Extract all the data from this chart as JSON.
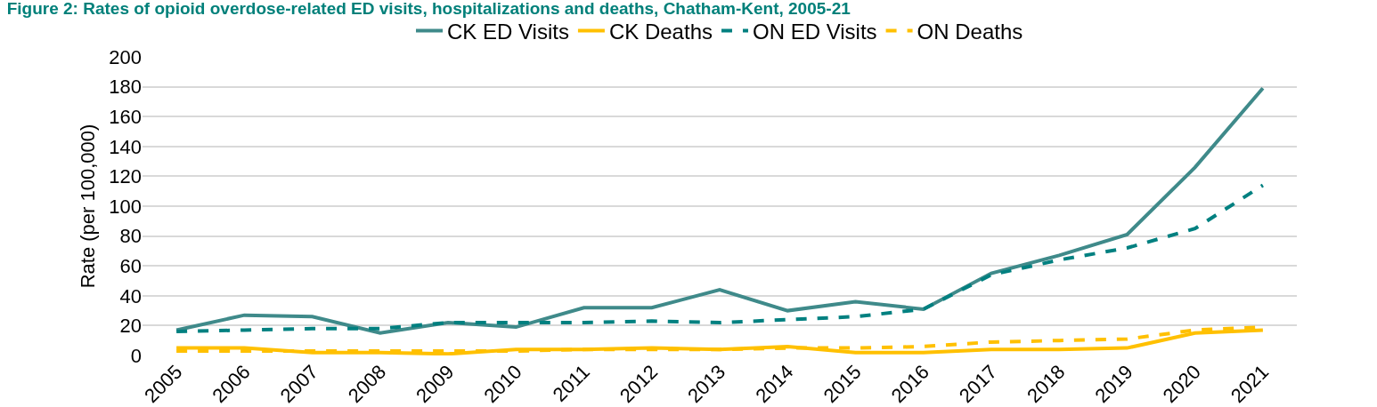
{
  "chart_data": {
    "type": "line",
    "title": "Figure 2: Rates of opioid overdose-related ED visits, hospitalizations and deaths, Chatham-Kent, 2005-21",
    "ylabel": "Rate (per 100,000)",
    "categories": [
      "2005",
      "2006",
      "2007",
      "2008",
      "2009",
      "2010",
      "2011",
      "2012",
      "2013",
      "2014",
      "2015",
      "2016",
      "2017",
      "2018",
      "2019",
      "2020",
      "2021"
    ],
    "series": [
      {
        "name": "CK ED Visits",
        "color": "#3f8a8a",
        "line_style": "solid",
        "values": [
          17,
          27,
          26,
          15,
          22,
          19,
          32,
          32,
          44,
          30,
          36,
          31,
          55,
          67,
          81,
          126,
          179
        ]
      },
      {
        "name": "CK Deaths",
        "color": "#ffc000",
        "line_style": "solid",
        "values": [
          5,
          5,
          2,
          2,
          1,
          4,
          4,
          5,
          4,
          6,
          2,
          2,
          4,
          4,
          5,
          15,
          17
        ]
      },
      {
        "name": "ON ED Visits",
        "color": "#008080",
        "line_style": "dashed",
        "values": [
          16,
          17,
          18,
          18,
          22,
          22,
          22,
          23,
          22,
          24,
          26,
          31,
          54,
          64,
          72,
          85,
          114
        ]
      },
      {
        "name": "ON Deaths",
        "color": "#ffc000",
        "line_style": "dashed",
        "values": [
          3,
          3,
          3,
          3,
          3,
          3,
          4,
          4,
          4,
          5,
          5,
          6,
          9,
          10,
          11,
          17,
          19
        ]
      }
    ],
    "ylim": [
      0,
      200
    ],
    "yticks": [
      0,
      20,
      40,
      60,
      80,
      100,
      120,
      140,
      160,
      180,
      200
    ],
    "grid": "y",
    "legend": "top",
    "marker": "none"
  }
}
